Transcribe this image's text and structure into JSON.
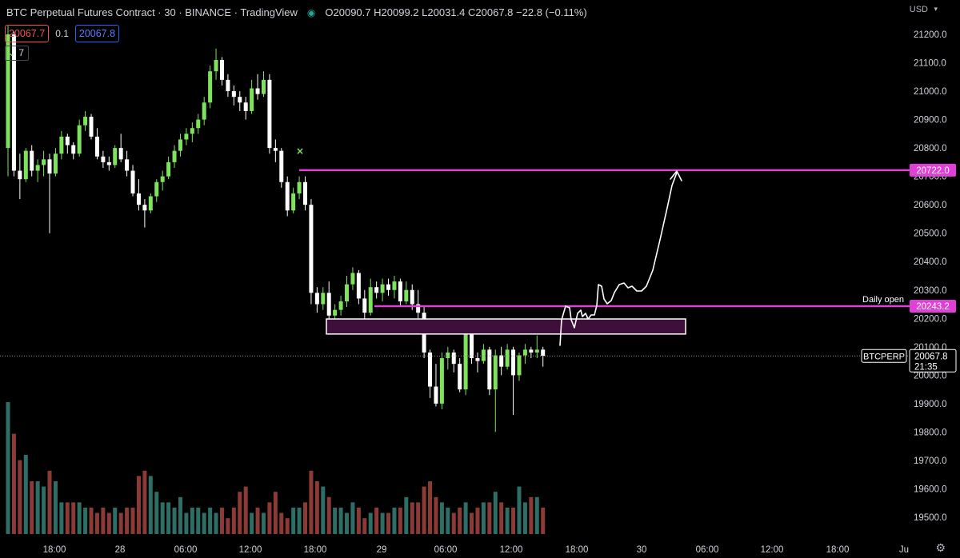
{
  "header": {
    "title": "BTC Perpetual Futures Contract · 30 · BINANCE · TradingView",
    "ohlc": [
      {
        "k": "O",
        "v": "20090.7"
      },
      {
        "k": "H",
        "v": "20099.2"
      },
      {
        "k": "L",
        "v": "20031.4"
      },
      {
        "k": "C",
        "v": "20067.8"
      }
    ],
    "change": "−22.8 (−0.11%)"
  },
  "order": {
    "sell": "20067.7",
    "spread": "0.1",
    "buy": "20067.8"
  },
  "indicator_count": "7",
  "currency": "USD",
  "colors": {
    "up": "#7ee35b",
    "down": "#ffffff",
    "vol_up": "#2d6e66",
    "vol_down": "#8b3a36",
    "magenta": "#e040d8",
    "zone_fill": "#3e0f3b",
    "bg": "#000000"
  },
  "chart_data": {
    "type": "candlestick",
    "symbol": "BTCPERP",
    "timeframe": "30",
    "yaxis": {
      "min": 19450,
      "max": 21250,
      "ticks": [
        21200,
        21100,
        21000,
        20900,
        20800,
        20700,
        20600,
        20500,
        20400,
        20300,
        20200,
        20100,
        20000,
        19900,
        19800,
        19700,
        19600,
        19500
      ],
      "tick_labels": [
        "21200.0",
        "21100.0",
        "21000.0",
        "20900.0",
        "20800.0",
        "20700.0",
        "20600.0",
        "20500.0",
        "20400.0",
        "20300.0",
        "20200.0",
        "20100.0",
        "20000.0",
        "19900.0",
        "19800.0",
        "19700.0",
        "19600.0",
        "19500.0"
      ]
    },
    "xaxis_labels": [
      "18:00",
      "28",
      "06:00",
      "12:00",
      "18:00",
      "29",
      "06:00",
      "12:00",
      "18:00",
      "30",
      "06:00",
      "12:00",
      "18:00",
      "Ju"
    ],
    "levels": [
      {
        "price": 20722.0,
        "label": "20722.0",
        "name": ""
      },
      {
        "price": 20243.2,
        "label": "20243.2",
        "name": "Daily open"
      }
    ],
    "zone": {
      "top": 20198,
      "bottom": 20145
    },
    "last_price": {
      "label": "BTCPERP",
      "price": "20067.8",
      "time": "21:35",
      "value": 20067.8
    },
    "candles": [
      {
        "o": 20800,
        "h": 21230,
        "l": 20700,
        "c": 21200
      },
      {
        "o": 21200,
        "h": 21210,
        "l": 20700,
        "c": 20720
      },
      {
        "o": 20720,
        "h": 20780,
        "l": 20620,
        "c": 20690
      },
      {
        "o": 20690,
        "h": 20800,
        "l": 20680,
        "c": 20790
      },
      {
        "o": 20790,
        "h": 20810,
        "l": 20700,
        "c": 20720
      },
      {
        "o": 20720,
        "h": 20760,
        "l": 20680,
        "c": 20740
      },
      {
        "o": 20740,
        "h": 20790,
        "l": 20700,
        "c": 20760
      },
      {
        "o": 20760,
        "h": 20780,
        "l": 20500,
        "c": 20710
      },
      {
        "o": 20710,
        "h": 20800,
        "l": 20700,
        "c": 20780
      },
      {
        "o": 20780,
        "h": 20860,
        "l": 20760,
        "c": 20840
      },
      {
        "o": 20840,
        "h": 20850,
        "l": 20780,
        "c": 20810
      },
      {
        "o": 20810,
        "h": 20820,
        "l": 20760,
        "c": 20780
      },
      {
        "o": 20780,
        "h": 20900,
        "l": 20770,
        "c": 20880
      },
      {
        "o": 20880,
        "h": 20930,
        "l": 20860,
        "c": 20910
      },
      {
        "o": 20910,
        "h": 20920,
        "l": 20830,
        "c": 20840
      },
      {
        "o": 20840,
        "h": 20870,
        "l": 20760,
        "c": 20770
      },
      {
        "o": 20770,
        "h": 20790,
        "l": 20730,
        "c": 20750
      },
      {
        "o": 20750,
        "h": 20770,
        "l": 20720,
        "c": 20740
      },
      {
        "o": 20740,
        "h": 20810,
        "l": 20730,
        "c": 20800
      },
      {
        "o": 20800,
        "h": 20850,
        "l": 20750,
        "c": 20760
      },
      {
        "o": 20760,
        "h": 20790,
        "l": 20700,
        "c": 20720
      },
      {
        "o": 20720,
        "h": 20740,
        "l": 20630,
        "c": 20640
      },
      {
        "o": 20640,
        "h": 20690,
        "l": 20580,
        "c": 20600
      },
      {
        "o": 20600,
        "h": 20620,
        "l": 20520,
        "c": 20580
      },
      {
        "o": 20580,
        "h": 20640,
        "l": 20570,
        "c": 20630
      },
      {
        "o": 20630,
        "h": 20690,
        "l": 20610,
        "c": 20680
      },
      {
        "o": 20680,
        "h": 20720,
        "l": 20650,
        "c": 20700
      },
      {
        "o": 20700,
        "h": 20770,
        "l": 20690,
        "c": 20750
      },
      {
        "o": 20750,
        "h": 20810,
        "l": 20730,
        "c": 20790
      },
      {
        "o": 20790,
        "h": 20850,
        "l": 20770,
        "c": 20830
      },
      {
        "o": 20830,
        "h": 20870,
        "l": 20810,
        "c": 20850
      },
      {
        "o": 20850,
        "h": 20890,
        "l": 20820,
        "c": 20870
      },
      {
        "o": 20870,
        "h": 20920,
        "l": 20850,
        "c": 20900
      },
      {
        "o": 20900,
        "h": 20980,
        "l": 20880,
        "c": 20960
      },
      {
        "o": 20960,
        "h": 21090,
        "l": 20940,
        "c": 21070
      },
      {
        "o": 21070,
        "h": 21150,
        "l": 21040,
        "c": 21110
      },
      {
        "o": 21110,
        "h": 21120,
        "l": 21020,
        "c": 21040
      },
      {
        "o": 21040,
        "h": 21060,
        "l": 20980,
        "c": 21000
      },
      {
        "o": 21000,
        "h": 21020,
        "l": 20950,
        "c": 20980
      },
      {
        "o": 20980,
        "h": 21000,
        "l": 20930,
        "c": 20960
      },
      {
        "o": 20960,
        "h": 20980,
        "l": 20900,
        "c": 20930
      },
      {
        "o": 20930,
        "h": 21040,
        "l": 20920,
        "c": 21010
      },
      {
        "o": 21010,
        "h": 21060,
        "l": 20970,
        "c": 20990
      },
      {
        "o": 20990,
        "h": 21070,
        "l": 20980,
        "c": 21040
      },
      {
        "o": 21040,
        "h": 21060,
        "l": 20780,
        "c": 20800
      },
      {
        "o": 20800,
        "h": 20830,
        "l": 20750,
        "c": 20790
      },
      {
        "o": 20790,
        "h": 20800,
        "l": 20660,
        "c": 20680
      },
      {
        "o": 20680,
        "h": 20700,
        "l": 20560,
        "c": 20580
      },
      {
        "o": 20580,
        "h": 20660,
        "l": 20570,
        "c": 20640
      },
      {
        "o": 20640,
        "h": 20700,
        "l": 20620,
        "c": 20680
      },
      {
        "o": 20680,
        "h": 20700,
        "l": 20580,
        "c": 20600
      },
      {
        "o": 20600,
        "h": 20620,
        "l": 20250,
        "c": 20290
      },
      {
        "o": 20290,
        "h": 20310,
        "l": 20220,
        "c": 20250
      },
      {
        "o": 20250,
        "h": 20310,
        "l": 20230,
        "c": 20290
      },
      {
        "o": 20290,
        "h": 20330,
        "l": 20180,
        "c": 20210
      },
      {
        "o": 20210,
        "h": 20250,
        "l": 20180,
        "c": 20230
      },
      {
        "o": 20230,
        "h": 20280,
        "l": 20210,
        "c": 20260
      },
      {
        "o": 20260,
        "h": 20350,
        "l": 20240,
        "c": 20320
      },
      {
        "o": 20320,
        "h": 20380,
        "l": 20300,
        "c": 20360
      },
      {
        "o": 20360,
        "h": 20370,
        "l": 20250,
        "c": 20270
      },
      {
        "o": 20270,
        "h": 20300,
        "l": 20180,
        "c": 20220
      },
      {
        "o": 20220,
        "h": 20340,
        "l": 20210,
        "c": 20310
      },
      {
        "o": 20310,
        "h": 20330,
        "l": 20270,
        "c": 20290
      },
      {
        "o": 20290,
        "h": 20340,
        "l": 20260,
        "c": 20320
      },
      {
        "o": 20320,
        "h": 20340,
        "l": 20280,
        "c": 20300
      },
      {
        "o": 20300,
        "h": 20350,
        "l": 20270,
        "c": 20330
      },
      {
        "o": 20330,
        "h": 20340,
        "l": 20240,
        "c": 20260
      },
      {
        "o": 20260,
        "h": 20330,
        "l": 20250,
        "c": 20300
      },
      {
        "o": 20300,
        "h": 20320,
        "l": 20230,
        "c": 20250
      },
      {
        "o": 20250,
        "h": 20300,
        "l": 20200,
        "c": 20220
      },
      {
        "o": 20220,
        "h": 20240,
        "l": 20060,
        "c": 20080
      },
      {
        "o": 20080,
        "h": 20090,
        "l": 19920,
        "c": 19960
      },
      {
        "o": 19960,
        "h": 20040,
        "l": 19890,
        "c": 19900
      },
      {
        "o": 19900,
        "h": 20080,
        "l": 19880,
        "c": 20060
      },
      {
        "o": 20060,
        "h": 20100,
        "l": 20020,
        "c": 20080
      },
      {
        "o": 20080,
        "h": 20090,
        "l": 20010,
        "c": 20040
      },
      {
        "o": 20040,
        "h": 20060,
        "l": 19940,
        "c": 19950
      },
      {
        "o": 19950,
        "h": 20180,
        "l": 19930,
        "c": 20150
      },
      {
        "o": 20150,
        "h": 20160,
        "l": 20040,
        "c": 20060
      },
      {
        "o": 20060,
        "h": 20080,
        "l": 20010,
        "c": 20050
      },
      {
        "o": 20050,
        "h": 20110,
        "l": 20040,
        "c": 20090
      },
      {
        "o": 20090,
        "h": 20100,
        "l": 19930,
        "c": 19950
      },
      {
        "o": 19950,
        "h": 20090,
        "l": 19800,
        "c": 20070
      },
      {
        "o": 20070,
        "h": 20100,
        "l": 20000,
        "c": 20030
      },
      {
        "o": 20030,
        "h": 20110,
        "l": 20020,
        "c": 20090
      },
      {
        "o": 20090,
        "h": 20100,
        "l": 19860,
        "c": 20000
      },
      {
        "o": 20000,
        "h": 20080,
        "l": 19980,
        "c": 20070
      },
      {
        "o": 20070,
        "h": 20110,
        "l": 20040,
        "c": 20090
      },
      {
        "o": 20090,
        "h": 20100,
        "l": 20060,
        "c": 20080
      },
      {
        "o": 20080,
        "h": 20140,
        "l": 20060,
        "c": 20090
      },
      {
        "o": 20090,
        "h": 20100,
        "l": 20030,
        "c": 20068
      }
    ],
    "volume": [
      25,
      19,
      14,
      15,
      10,
      10,
      9,
      12,
      10,
      6,
      6,
      6,
      6,
      5,
      5,
      4,
      5,
      4,
      5,
      4,
      5,
      5,
      11,
      12,
      11,
      8,
      6,
      6,
      5,
      7,
      4,
      5,
      5,
      4,
      5,
      4,
      5,
      3,
      5,
      8,
      9,
      4,
      5,
      4,
      6,
      8,
      4,
      3,
      5,
      5,
      6,
      12,
      10,
      9,
      7,
      5,
      5,
      4,
      6,
      5,
      3,
      4,
      5,
      4,
      4,
      5,
      5,
      7,
      6,
      6,
      9,
      10,
      7,
      6,
      5,
      4,
      5,
      6,
      4,
      5,
      6,
      6,
      8,
      6,
      5,
      5,
      9,
      6,
      7,
      7,
      5
    ]
  }
}
